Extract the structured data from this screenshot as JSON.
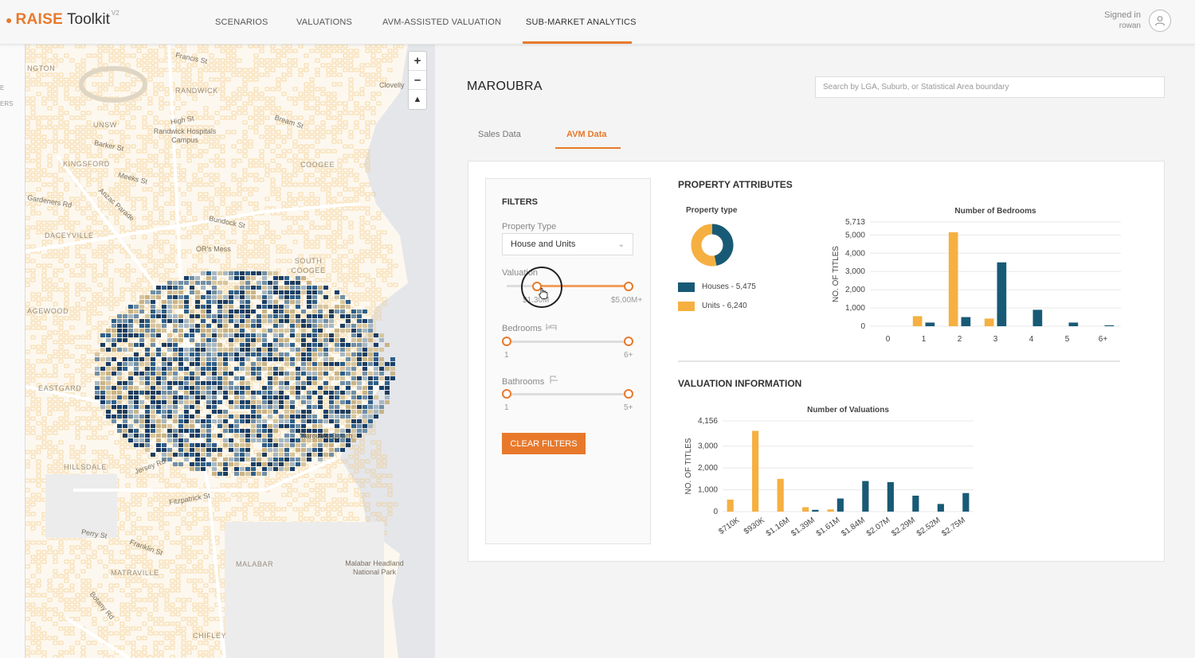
{
  "header": {
    "brand": "RAISE",
    "toolkit": "Toolkit",
    "version": "V2",
    "nav": [
      {
        "label": "SCENARIOS"
      },
      {
        "label": "VALUATIONS"
      },
      {
        "label": "AVM-ASSISTED VALUATION"
      },
      {
        "label": "SUB-MARKET ANALYTICS"
      }
    ],
    "active_nav": "SUB-MARKET ANALYTICS",
    "signed_in_label": "Signed in",
    "user": "rowan"
  },
  "left_strip": {
    "frag1": "E",
    "frag2": "ERS"
  },
  "map": {
    "labels": {
      "clovelly": "Clovelly",
      "randwick": "RANDWICK",
      "unsw": "UNSW",
      "kingsford": "KINGSFORD",
      "coogee": "COOGEE",
      "daceyville": "DACEYVILLE",
      "south_coogee": "SOUTH COOGEE",
      "pagewood": "AGEWOOD",
      "eastgardens": "EASTGARD",
      "hillsdale": "HILLSDALE",
      "matraville": "MATRAVILLE",
      "malabar": "MALABAR",
      "chifley": "CHIFLEY",
      "ngton": "NGTON",
      "hospitals": "Randwick Hospitals Campus",
      "ors_mess": "OR's Mess",
      "maroubra_beach": "Maroubra Beach",
      "malabar_np": "Malabar Headland National Park",
      "francis_st": "Francis St",
      "high_st": "High St",
      "barker_st": "Barker St",
      "meeks_st": "Meeks St",
      "gardeners_rd": "Gardeners Rd",
      "anzac_pde": "Anzac Parade",
      "bundock_st": "Bundock St",
      "jersey_rd": "Jersey Rd",
      "franklin_st": "Franklin St",
      "perry_st": "Perry St",
      "botany_rd": "Botany Rd",
      "bream_st": "Bream St",
      "fitzpatrick_st": "Fitzpatrick St"
    }
  },
  "page": {
    "suburb": "MAROUBRA",
    "search_placeholder": "Search by LGA, Suburb, or Statistical Area boundary",
    "tabs": [
      {
        "label": "Sales Data"
      },
      {
        "label": "AVM Data"
      }
    ],
    "active_tab": "AVM Data"
  },
  "filters": {
    "title": "FILTERS",
    "property_type_label": "Property Type",
    "property_type_value": "House and Units",
    "valuation_label": "Valuation",
    "valuation_min": "$1.30M",
    "valuation_max": "$5.00M+",
    "valuation_min_fraction": 0.25,
    "valuation_max_fraction": 1.0,
    "bedrooms_label": "Bedrooms",
    "bedrooms_min": "1",
    "bedrooms_max": "6+",
    "bathrooms_label": "Bathrooms",
    "bathrooms_min": "1",
    "bathrooms_max": "5+",
    "clear_label": "CLEAR FILTERS"
  },
  "attributes": {
    "title": "PROPERTY ATTRIBUTES",
    "property_type_title": "Property type",
    "houses_label": "Houses - 5,475",
    "units_label": "Units - 6,240",
    "colors": {
      "houses": "#185a75",
      "units": "#f5b041"
    }
  },
  "valuation_info": {
    "title": "VALUATION INFORMATION"
  },
  "chart_data": [
    {
      "type": "pie",
      "title": "Property type",
      "categories": [
        "Houses",
        "Units"
      ],
      "values": [
        5475,
        6240
      ],
      "colors": [
        "#185a75",
        "#f5b041"
      ]
    },
    {
      "type": "bar",
      "title": "Number of Bedrooms",
      "ylabel": "NO. OF TITLES",
      "categories": [
        "0",
        "1",
        "2",
        "3",
        "4",
        "5",
        "6+"
      ],
      "yticks": [
        "0",
        "1,000",
        "2,000",
        "3,000",
        "4,000",
        "5,000",
        "5,713"
      ],
      "ytick_values": [
        0,
        1000,
        2000,
        3000,
        4000,
        5000,
        5713
      ],
      "ylim": [
        0,
        5713
      ],
      "series": [
        {
          "name": "Houses",
          "color": "#185a75",
          "values": [
            0,
            200,
            500,
            3500,
            900,
            200,
            50
          ]
        },
        {
          "name": "Units",
          "color": "#f5b041",
          "values": [
            0,
            550,
            5150,
            420,
            0,
            0,
            0
          ]
        }
      ]
    },
    {
      "type": "bar",
      "title": "Number of Valuations",
      "ylabel": "NO. OF TITLES",
      "categories": [
        "$710K",
        "$930K",
        "$1.16M",
        "$1.39M",
        "$1.61M",
        "$1.84M",
        "$2.07M",
        "$2.29M",
        "$2.52M",
        "$2.75M"
      ],
      "yticks": [
        "0",
        "1,000",
        "2,000",
        "3,000",
        "4,156"
      ],
      "ytick_values": [
        0,
        1000,
        2000,
        3000,
        4156
      ],
      "ylim": [
        0,
        4156
      ],
      "series": [
        {
          "name": "Houses",
          "color": "#185a75",
          "values": [
            0,
            0,
            0,
            80,
            600,
            1400,
            1350,
            730,
            350,
            850
          ]
        },
        {
          "name": "Units",
          "color": "#f5b041",
          "values": [
            550,
            3700,
            1500,
            200,
            100,
            0,
            0,
            0,
            0,
            0
          ]
        }
      ]
    }
  ]
}
